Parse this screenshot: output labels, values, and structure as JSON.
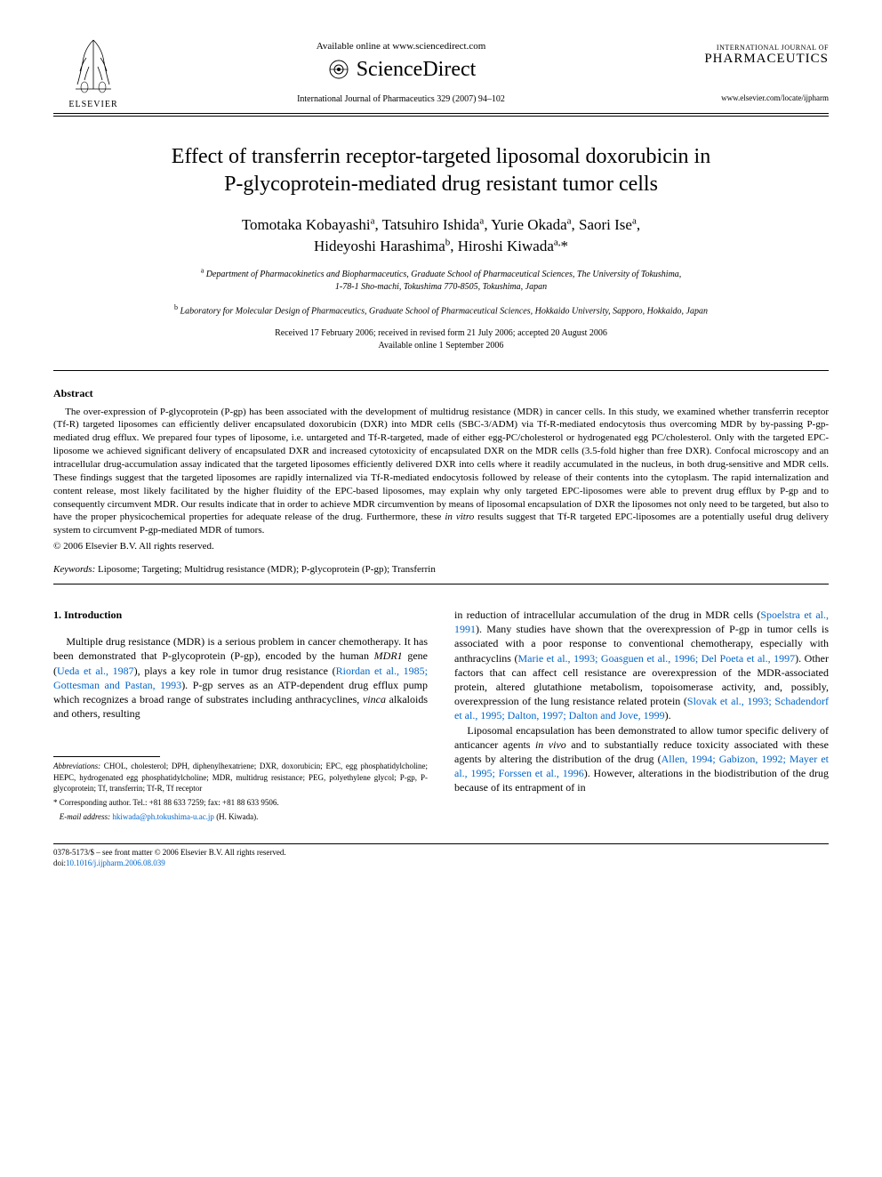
{
  "header": {
    "available_online": "Available online at www.sciencedirect.com",
    "sciencedirect": "ScienceDirect",
    "elsevier_label": "ELSEVIER",
    "citation": "International Journal of Pharmaceutics 329 (2007) 94–102",
    "journal_top": "INTERNATIONAL JOURNAL OF",
    "journal_main": "PHARMACEUTICS",
    "journal_url": "www.elsevier.com/locate/ijpharm"
  },
  "title_line1": "Effect of transferrin receptor-targeted liposomal doxorubicin in",
  "title_line2": "P-glycoprotein-mediated drug resistant tumor cells",
  "authors_line1_html": "Tomotaka Kobayashi<sup>a</sup>, Tatsuhiro Ishida<sup>a</sup>, Yurie Okada<sup>a</sup>, Saori Ise<sup>a</sup>,",
  "authors_line2_html": "Hideyoshi Harashima<sup>b</sup>, Hiroshi Kiwada<sup>a,</sup>*",
  "affil_a_html": "<sup>a</sup> Department of Pharmacokinetics and Biopharmaceutics, Graduate School of Pharmaceutical Sciences, The University of Tokushima,",
  "affil_a2": "1-78-1 Sho-machi, Tokushima 770-8505, Tokushima, Japan",
  "affil_b_html": "<sup>b</sup> Laboratory for Molecular Design of Pharmaceutics, Graduate School of Pharmaceutical Sciences, Hokkaido University, Sapporo, Hokkaido, Japan",
  "dates_line1": "Received 17 February 2006; received in revised form 21 July 2006; accepted 20 August 2006",
  "dates_line2": "Available online 1 September 2006",
  "abstract_heading": "Abstract",
  "abstract_body_html": "The over-expression of P-glycoprotein (P-gp) has been associated with the development of multidrug resistance (MDR) in cancer cells. In this study, we examined whether transferrin receptor (Tf-R) targeted liposomes can efficiently deliver encapsulated doxorubicin (DXR) into MDR cells (SBC-3/ADM) via Tf-R-mediated endocytosis thus overcoming MDR by by-passing P-gp-mediated drug efflux. We prepared four types of liposome, i.e. untargeted and Tf-R-targeted, made of either egg-PC/cholesterol or hydrogenated egg PC/cholesterol. Only with the targeted EPC-liposome we achieved significant delivery of encapsulated DXR and increased cytotoxicity of encapsulated DXR on the MDR cells (3.5-fold higher than free DXR). Confocal microscopy and an intracellular drug-accumulation assay indicated that the targeted liposomes efficiently delivered DXR into cells where it readily accumulated in the nucleus, in both drug-sensitive and MDR cells. These findings suggest that the targeted liposomes are rapidly internalized via Tf-R-mediated endocytosis followed by release of their contents into the cytoplasm. The rapid internalization and content release, most likely facilitated by the higher fluidity of the EPC-based liposomes, may explain why only targeted EPC-liposomes were able to prevent drug efflux by P-gp and to consequently circumvent MDR. Our results indicate that in order to achieve MDR circumvention by means of liposomal encapsulation of DXR the liposomes not only need to be targeted, but also to have the proper physicochemical properties for adequate release of the drug. Furthermore, these <span class=\"italic\">in vitro</span> results suggest that Tf-R targeted EPC-liposomes are a potentially useful drug delivery system to circumvent P-gp-mediated MDR of tumors.",
  "copyright": "© 2006 Elsevier B.V. All rights reserved.",
  "keywords_label": "Keywords:",
  "keywords_text": " Liposome; Targeting; Multidrug resistance (MDR); P-glycoprotein (P-gp); Transferrin",
  "intro_heading": "1. Introduction",
  "col1_p1_html": "Multiple drug resistance (MDR) is a serious problem in cancer chemotherapy. It has been demonstrated that P-glycoprotein (P-gp), encoded by the human <span class=\"italic\">MDR1</span> gene (<span class=\"ref-link\">Ueda et al., 1987</span>), plays a key role in tumor drug resistance (<span class=\"ref-link\">Riordan et al., 1985; Gottesman and Pastan, 1993</span>). P-gp serves as an ATP-dependent drug efflux pump which recognizes a broad range of substrates including anthracyclines, <span class=\"italic\">vinca</span> alkaloids and others, resulting",
  "col2_p1_html": "in reduction of intracellular accumulation of the drug in MDR cells (<span class=\"ref-link\">Spoelstra et al., 1991</span>). Many studies have shown that the overexpression of P-gp in tumor cells is associated with a poor response to conventional chemotherapy, especially with anthracyclins (<span class=\"ref-link\">Marie et al., 1993; Goasguen et al., 1996; Del Poeta et al., 1997</span>). Other factors that can affect cell resistance are overexpression of the MDR-associated protein, altered glutathione metabolism, topoisomerase activity, and, possibly, overexpression of the lung resistance related protein (<span class=\"ref-link\">Slovak et al., 1993; Schadendorf et al., 1995; Dalton, 1997; Dalton and Jove, 1999</span>).",
  "col2_p2_html": "Liposomal encapsulation has been demonstrated to allow tumor specific delivery of anticancer agents <span class=\"italic\">in vivo</span> and to substantially reduce toxicity associated with these agents by altering the distribution of the drug (<span class=\"ref-link\">Allen, 1994; Gabizon, 1992; Mayer et al., 1995; Forssen et al., 1996</span>). However, alterations in the biodistribution of the drug because of its entrapment of in",
  "footnotes": {
    "abbrev_label": "Abbreviations:",
    "abbrev_text": " CHOL, cholesterol; DPH, diphenylhexatriene; DXR, doxorubicin; EPC, egg phosphatidylcholine; HEPC, hydrogenated egg phosphatidylcholine; MDR, multidrug resistance; PEG, polyethylene glycol; P-gp, P-glycoprotein; Tf, transferrin; Tf-R, Tf receptor",
    "corr": "* Corresponding author. Tel.: +81 88 633 7259; fax: +81 88 633 9506.",
    "email_label": "E-mail address:",
    "email": "hkiwada@ph.tokushima-u.ac.jp",
    "email_person": " (H. Kiwada)."
  },
  "bottom": {
    "issn": "0378-5173/$ – see front matter © 2006 Elsevier B.V. All rights reserved.",
    "doi_label": "doi:",
    "doi": "10.1016/j.ijpharm.2006.08.039"
  }
}
